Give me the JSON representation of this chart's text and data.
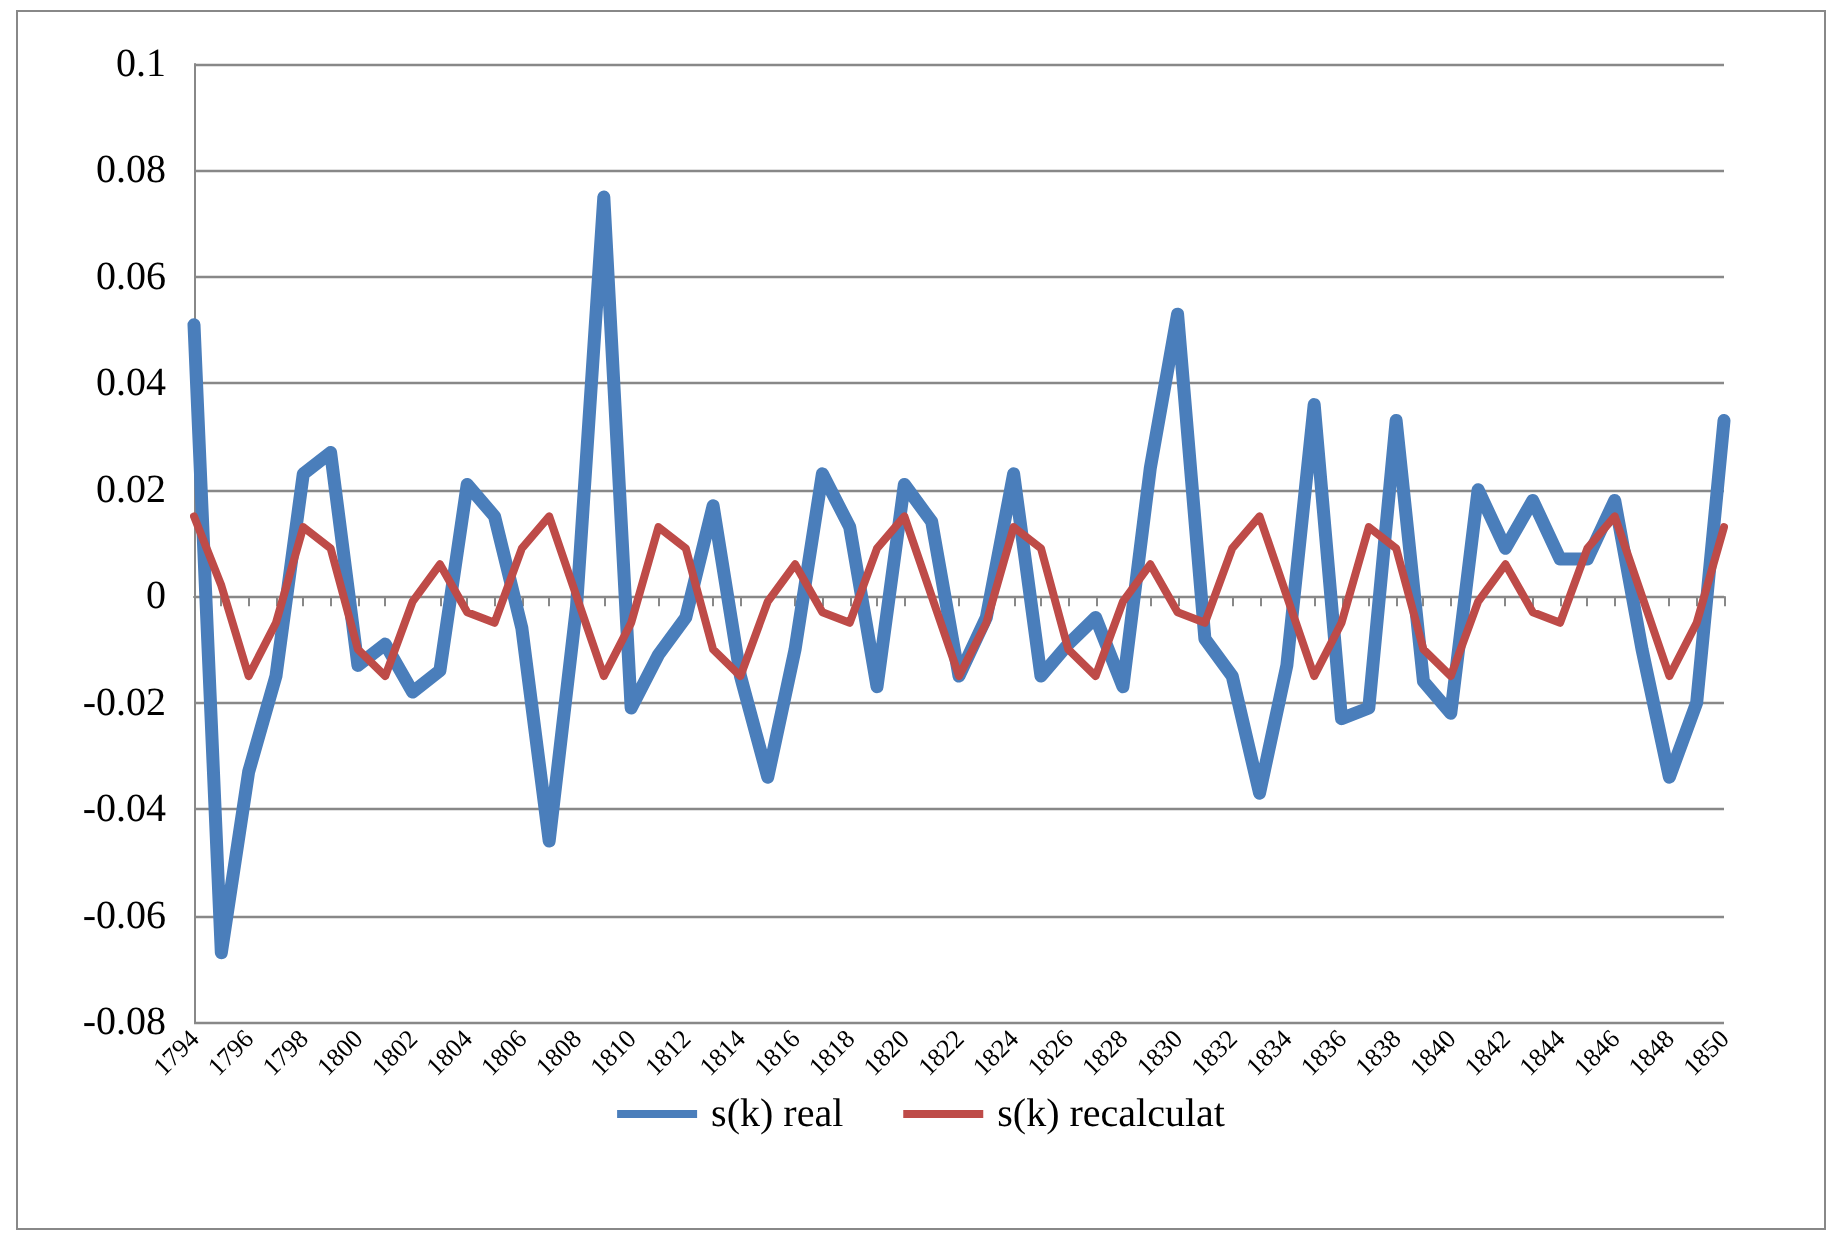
{
  "chart_data": {
    "type": "line",
    "categories": [
      "1794",
      null,
      "1796",
      null,
      "1798",
      null,
      "1800",
      null,
      "1802",
      null,
      "1804",
      null,
      "1806",
      null,
      "1808",
      null,
      "1810",
      null,
      "1812",
      null,
      "1814",
      null,
      "1816",
      null,
      "1818",
      null,
      "1820",
      null,
      "1822",
      null,
      "1824",
      null,
      "1826",
      null,
      "1828",
      null,
      "1830",
      null,
      "1832",
      null,
      "1834",
      null,
      "1836",
      null,
      "1838",
      null,
      "1840",
      null,
      "1842",
      null,
      "1844",
      null,
      "1846",
      null,
      "1848",
      null,
      "1850"
    ],
    "series": [
      {
        "name": "s(k) real",
        "color": "#4a7ebb",
        "values": [
          0.051,
          -0.067,
          -0.033,
          -0.015,
          0.023,
          0.027,
          -0.013,
          -0.009,
          -0.018,
          -0.014,
          0.021,
          0.015,
          -0.006,
          -0.046,
          -0.002,
          0.075,
          -0.021,
          -0.011,
          -0.004,
          0.017,
          -0.015,
          -0.034,
          -0.01,
          0.023,
          0.013,
          -0.017,
          0.021,
          0.014,
          -0.015,
          -0.004,
          0.023,
          -0.015,
          -0.009,
          -0.004,
          -0.017,
          0.024,
          0.053,
          -0.008,
          -0.015,
          -0.037,
          -0.013,
          0.036,
          -0.023,
          -0.021,
          0.033,
          -0.016,
          -0.022,
          0.02,
          0.009,
          0.018,
          0.007,
          0.007,
          0.018,
          -0.01,
          -0.034,
          -0.02,
          0.033
        ]
      },
      {
        "name": "s(k) recalculat",
        "color": "#be4b48",
        "values": [
          0.015,
          0.002,
          -0.015,
          -0.005,
          0.013,
          0.009,
          -0.01,
          -0.015,
          -0.001,
          0.006,
          -0.003,
          -0.005,
          0.009,
          0.015,
          0.0,
          -0.015,
          -0.005,
          0.013,
          0.009,
          -0.01,
          -0.015,
          -0.001,
          0.006,
          -0.003,
          -0.005,
          0.009,
          0.015,
          0.0,
          -0.015,
          -0.005,
          0.013,
          0.009,
          -0.01,
          -0.015,
          -0.001,
          0.006,
          -0.003,
          -0.005,
          0.009,
          0.015,
          0.0,
          -0.015,
          -0.005,
          0.013,
          0.009,
          -0.01,
          -0.015,
          -0.001,
          0.006,
          -0.003,
          -0.005,
          0.009,
          0.015,
          0.0,
          -0.015,
          -0.005,
          0.013
        ]
      }
    ],
    "ylim": [
      -0.08,
      0.1
    ],
    "yticks": [
      -0.08,
      -0.06,
      -0.04,
      -0.02,
      0,
      0.02,
      0.04,
      0.06,
      0.08,
      0.1
    ],
    "grid": "y",
    "legend": "bottom",
    "marker": "none",
    "line_style": "solid"
  }
}
